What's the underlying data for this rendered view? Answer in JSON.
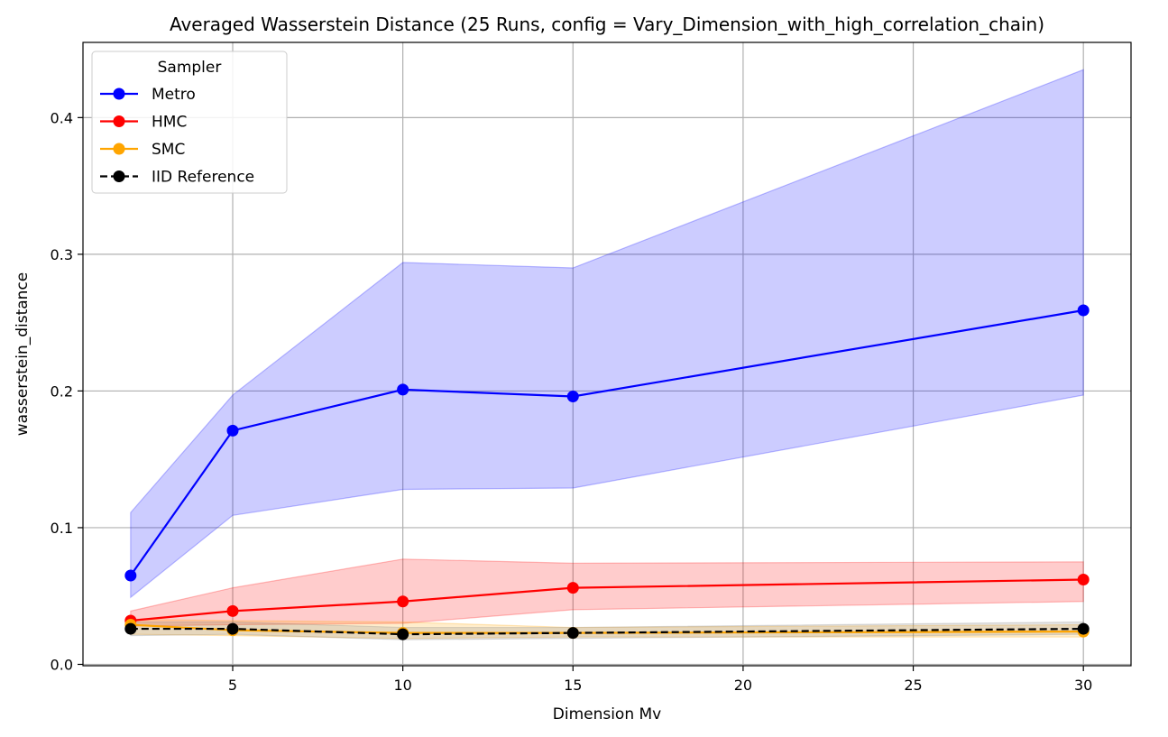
{
  "chart_data": {
    "type": "line",
    "title": "Averaged Wasserstein Distance (25 Runs, config = Vary_Dimension_with_high_correlation_chain)",
    "xlabel": "Dimension Mv",
    "ylabel": "wasserstein_distance",
    "x": [
      2,
      5,
      10,
      15,
      30
    ],
    "xlim": [
      0.6,
      31.4
    ],
    "ylim": [
      -0.001,
      0.455
    ],
    "xticks": [
      5,
      10,
      15,
      20,
      25,
      30
    ],
    "yticks": [
      0.0,
      0.1,
      0.2,
      0.3,
      0.4
    ],
    "xtick_labels": [
      "5",
      "10",
      "15",
      "20",
      "25",
      "30"
    ],
    "ytick_labels": [
      "0.0",
      "0.1",
      "0.2",
      "0.3",
      "0.4"
    ],
    "grid": true,
    "legend": {
      "title": "Sampler",
      "placement": "upper-left"
    },
    "series": [
      {
        "name": "Metro",
        "color": "#0000ff",
        "linestyle": "solid",
        "values": [
          0.065,
          0.171,
          0.201,
          0.196,
          0.259
        ],
        "band_lower": [
          0.049,
          0.109,
          0.128,
          0.129,
          0.197
        ],
        "band_upper": [
          0.111,
          0.197,
          0.294,
          0.29,
          0.435
        ],
        "band_color": "#0000ff"
      },
      {
        "name": "HMC",
        "color": "#ff0000",
        "linestyle": "solid",
        "values": [
          0.032,
          0.039,
          0.046,
          0.056,
          0.062
        ],
        "band_lower": [
          0.028,
          0.029,
          0.03,
          0.04,
          0.046
        ],
        "band_upper": [
          0.039,
          0.056,
          0.077,
          0.074,
          0.075
        ],
        "band_color": "#ff0000"
      },
      {
        "name": "SMC",
        "color": "#ffa500",
        "linestyle": "solid",
        "values": [
          0.029,
          0.025,
          0.023,
          0.023,
          0.024
        ],
        "band_lower": [
          0.022,
          0.021,
          0.019,
          0.02,
          0.02
        ],
        "band_upper": [
          0.033,
          0.032,
          0.031,
          0.027,
          0.029
        ],
        "band_color": "#ffa500"
      },
      {
        "name": "IID Reference",
        "color": "#000000",
        "linestyle": "dashed",
        "values": [
          0.026,
          0.026,
          0.022,
          0.023,
          0.026
        ],
        "band_lower": [
          0.021,
          0.022,
          0.018,
          0.019,
          0.022
        ],
        "band_upper": [
          0.031,
          0.031,
          0.027,
          0.027,
          0.031
        ],
        "band_color": "#808080"
      }
    ]
  }
}
